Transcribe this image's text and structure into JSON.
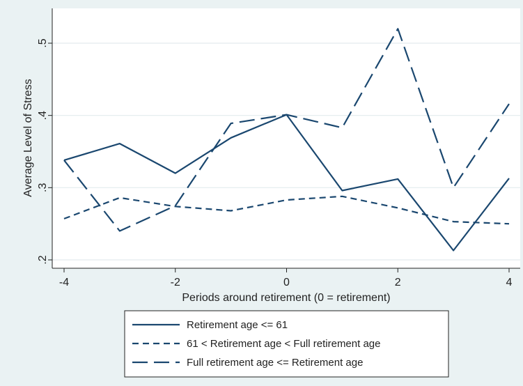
{
  "chart_data": {
    "type": "line",
    "xlabel": "Periods around retirement (0 = retirement)",
    "ylabel": "Average Level of Stress",
    "x": [
      -4,
      -3,
      -2,
      -1,
      0,
      1,
      2,
      3,
      4
    ],
    "xlim": [
      -4,
      4
    ],
    "ylim": [
      0.2,
      0.5
    ],
    "xticks": [
      -4,
      -2,
      0,
      2,
      4
    ],
    "xtick_labels": [
      "-4",
      "-2",
      "0",
      "2",
      "4"
    ],
    "yticks": [
      0.2,
      0.3,
      0.4,
      0.5
    ],
    "ytick_labels": [
      ".2",
      ".3",
      ".4",
      ".5"
    ],
    "grid": true,
    "legend_position": "bottom",
    "line_color": "#1a476f",
    "plot_background": "#ffffff",
    "figure_background": "#eaf2f3",
    "series": [
      {
        "name": "Retirement age <= 61",
        "style": "solid",
        "values": [
          0.338,
          0.361,
          0.32,
          0.369,
          0.401,
          0.296,
          0.312,
          0.213,
          0.313
        ]
      },
      {
        "name": "61 < Retirement age < Full retirement age",
        "style": "short-dash",
        "values": [
          0.257,
          0.286,
          0.274,
          0.268,
          0.283,
          0.288,
          0.272,
          0.253,
          0.25
        ]
      },
      {
        "name": "Full retirement age <= Retirement age",
        "style": "long-dash",
        "values": [
          0.338,
          0.24,
          0.275,
          0.389,
          0.401,
          0.383,
          0.52,
          0.3,
          0.416
        ]
      }
    ]
  }
}
